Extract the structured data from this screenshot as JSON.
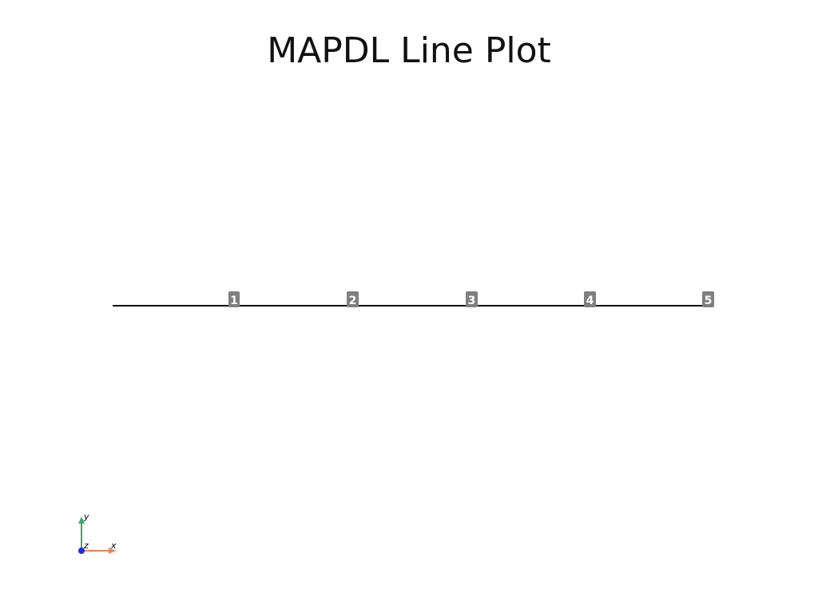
{
  "title": "MAPDL Line Plot",
  "keypoints": [
    {
      "label": "1"
    },
    {
      "label": "2"
    },
    {
      "label": "3"
    },
    {
      "label": "4"
    },
    {
      "label": "5"
    }
  ],
  "triad": {
    "x_label": "x",
    "y_label": "y",
    "z_label": "z"
  },
  "colors": {
    "background": "#ffffff",
    "line": "#000000",
    "label_box": "#7f7f7f",
    "label_text": "#ffffff",
    "x_axis": "#e8825a",
    "y_axis": "#3aa86b",
    "z_axis": "#1a2fd6"
  }
}
